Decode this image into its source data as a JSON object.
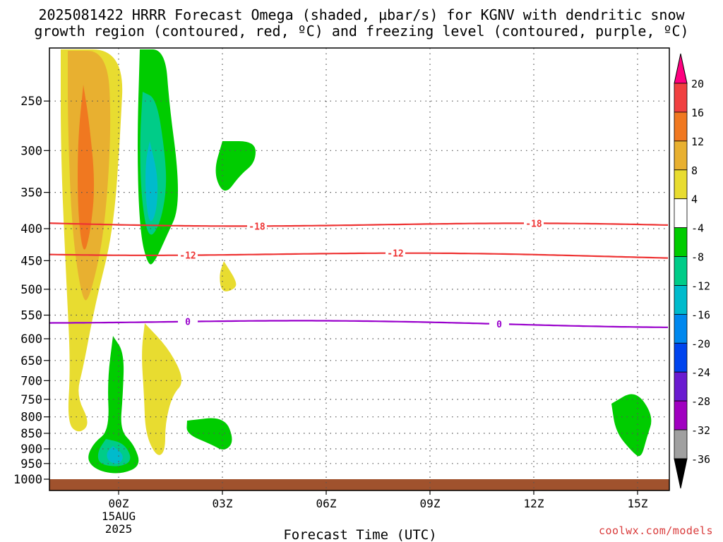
{
  "title": {
    "line1": "2025081422 HRRR Forecast Omega (shaded, µbar/s) for KGNV with dendritic snow",
    "line2": "growth region (contoured, red, ºC) and freezing level (contoured, purple, ºC)"
  },
  "watermark": "coolwx.com/models",
  "chart_data": {
    "type": "contour",
    "title": "2025081422 HRRR Forecast Omega (shaded, µbar/s) for KGNV with dendritic snow growth region (contoured, red, ºC) and freezing level (contoured, purple, ºC)",
    "xlabel": "Forecast Time (UTC)",
    "ylabel": "",
    "x_ticks": [
      "00Z",
      "03Z",
      "06Z",
      "09Z",
      "12Z",
      "15Z"
    ],
    "x_date_label": [
      "15AUG",
      "2025"
    ],
    "xlim_hours": [
      -2,
      16
    ],
    "y_ticks": [
      250,
      300,
      350,
      400,
      450,
      500,
      550,
      600,
      650,
      700,
      750,
      800,
      850,
      900,
      950,
      1000
    ],
    "ylim_hPa": [
      200,
      1000
    ],
    "y_scale": "log-pressure (inverted)",
    "grid": true,
    "colorbar": {
      "ticks": [
        20,
        16,
        12,
        8,
        4,
        -4,
        -8,
        -12,
        -16,
        -20,
        -24,
        -28,
        -32,
        -36
      ],
      "colors": [
        "#ff0080",
        "#f04040",
        "#f07820",
        "#e8b030",
        "#e8dc30",
        "#ffffff",
        "#00cc00",
        "#00cc88",
        "#00bbcc",
        "#0088ee",
        "#0044ee",
        "#6a1bd0",
        "#a000c0",
        "#a0a0a0",
        "#000000"
      ]
    },
    "contours": [
      {
        "label": "-18",
        "color": "#ee3333",
        "hPa": 392
      },
      {
        "label": "-12",
        "color": "#ee3333",
        "hPa": 437
      },
      {
        "label": "0",
        "color": "#9900cc",
        "hPa": 562
      }
    ],
    "contour_labels": [
      {
        "text": "-18",
        "hour": 4.0
      },
      {
        "text": "-18",
        "hour": 12.0
      },
      {
        "text": "-12",
        "hour": 2.0
      },
      {
        "text": "-12",
        "hour": 8.0
      },
      {
        "text": "0",
        "hour": 2.0
      },
      {
        "text": "0",
        "hour": 11.0
      }
    ],
    "shaded_regions": [
      {
        "name": "upward-motion-column-1",
        "value_range": [
          4,
          8
        ],
        "color": "#e8dc30"
      },
      {
        "name": "upward-motion-core-1",
        "value_range": [
          8,
          12
        ],
        "color": "#e8b030"
      },
      {
        "name": "upward-motion-peak-1",
        "value_range": [
          12,
          16
        ],
        "color": "#f07820"
      },
      {
        "name": "downward-motion-column-1",
        "value_range": [
          -8,
          -4
        ],
        "color": "#00cc00"
      },
      {
        "name": "downward-motion-core-1",
        "value_range": [
          -12,
          -8
        ],
        "color": "#00cc88"
      },
      {
        "name": "downward-motion-peak-1",
        "value_range": [
          -16,
          -12
        ],
        "color": "#00bbcc"
      }
    ],
    "terrain_color": "#a0522d"
  }
}
